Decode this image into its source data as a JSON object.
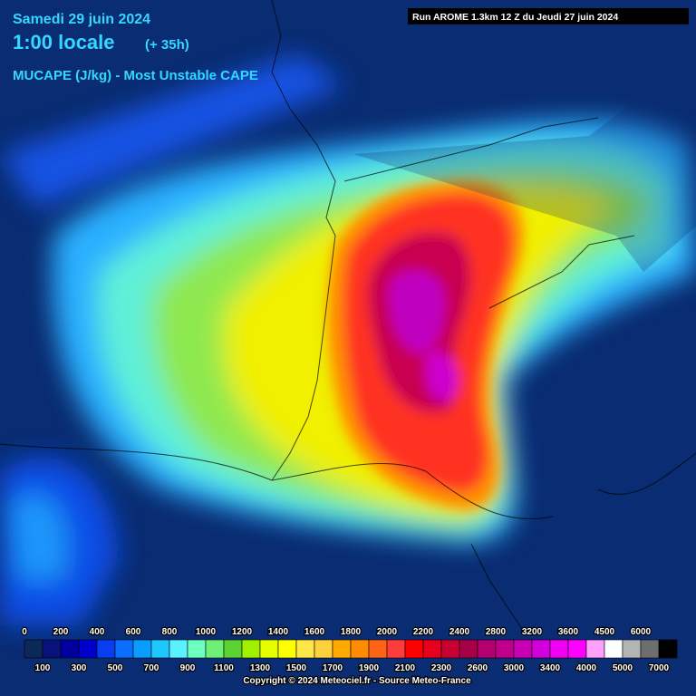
{
  "header": {
    "date": "Samedi 29 juin 2024",
    "time": "1:00 locale",
    "lead": "(+ 35h)",
    "parameter": "MUCAPE (J/kg) - Most Unstable CAPE",
    "run": "Run AROME 1.3km 12 Z du Jeudi 27 juin 2024"
  },
  "legend": {
    "top_labels": [
      0,
      200,
      400,
      600,
      800,
      1000,
      1200,
      1400,
      1600,
      1800,
      2000,
      2200,
      2400,
      2800,
      3200,
      3600,
      4500,
      6000
    ],
    "bottom_labels": [
      100,
      300,
      500,
      700,
      900,
      1100,
      1300,
      1500,
      1700,
      1900,
      2100,
      2300,
      2600,
      3000,
      3400,
      4000,
      5000,
      7000
    ],
    "colors": [
      "#0c2858",
      "#08127a",
      "#0000a0",
      "#0000cc",
      "#0a3cf0",
      "#0a6eff",
      "#0a9cff",
      "#1ec8ff",
      "#5af0ff",
      "#6effc0",
      "#6ef078",
      "#5ad232",
      "#a0f000",
      "#e6ff00",
      "#ffff00",
      "#ffe646",
      "#ffd23c",
      "#ffaa00",
      "#ff8c00",
      "#ff6414",
      "#ff3c3c",
      "#ff0000",
      "#e6001e",
      "#c80032",
      "#a80046",
      "#b4006e",
      "#be008c",
      "#c800b4",
      "#d200dc",
      "#f000f0",
      "#ff00ff",
      "#ffa0ff",
      "#ffffff",
      "#b4b4b4",
      "#6e6e6e",
      "#000000"
    ]
  },
  "footer": {
    "copyright": "Copyright © 2024 Meteociel.fr - Source Meteo-France"
  }
}
